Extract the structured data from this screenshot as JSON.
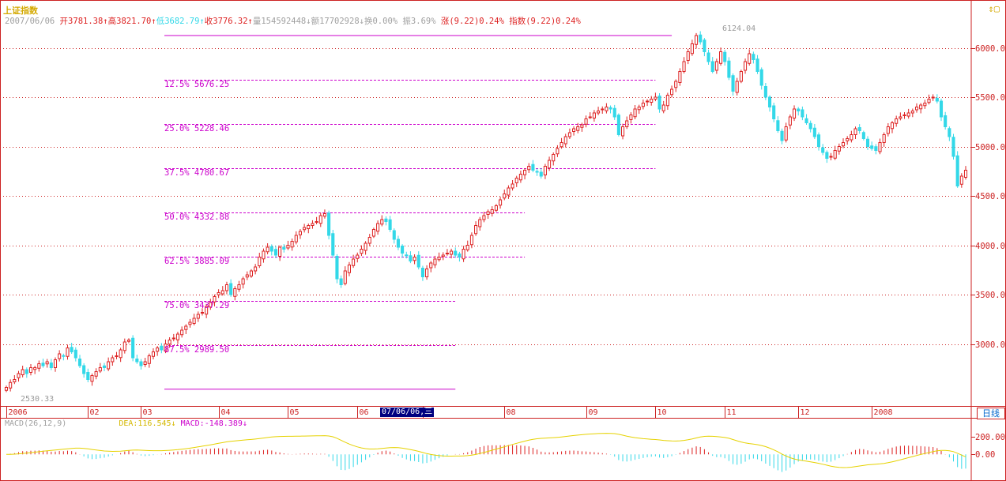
{
  "header": {
    "title": "上证指数",
    "date": "2007/06/06",
    "open": "开3781.38↑",
    "high": "高3821.70↑",
    "low": "低3682.79↑",
    "close": "收3776.32↑",
    "volume": "量154592448↓",
    "amount": "额17702928↓",
    "turnover": "换0.00%",
    "amplitude": "振3.69%",
    "change": "涨(9.22)0.24%",
    "index": "指数(9.22)0.24%"
  },
  "toolbar": {
    "icons": [
      "up-down-arrows-icon",
      "small-box-icon"
    ]
  },
  "colors": {
    "up": "#dd2222",
    "down": "#33d8e8",
    "grid": "#cc2222",
    "fib": "#cc00cc",
    "dea": "#e6d200",
    "background": "#ffffff"
  },
  "period_label": "日线",
  "cursor_date": "07/06/06,三",
  "macd_legend": {
    "name": "MACD(26,12,9)",
    "dea": "DEA:116.545↓",
    "macd": "MACD:-148.389↓"
  },
  "peak_label": "6124.04",
  "trough_label": "2530.33",
  "chart_data": {
    "type": "candlestick",
    "title": "上证指数",
    "y_ticks": [
      3000,
      3500,
      4000,
      4500,
      5000,
      5500,
      6000
    ],
    "y_tick_labels": [
      "3000.00",
      "3500.00",
      "4000.00",
      "4500.00",
      "5000.00",
      "5500.00",
      "6000.00"
    ],
    "ylim": [
      2460,
      6180
    ],
    "x_ticks": [
      {
        "label": "2006",
        "pos": 0
      },
      {
        "label": "02",
        "pos": 20
      },
      {
        "label": "03",
        "pos": 33
      },
      {
        "label": "04",
        "pos": 52
      },
      {
        "label": "05",
        "pos": 69
      },
      {
        "label": "06",
        "pos": 86
      },
      {
        "label": "07",
        "pos": 102
      },
      {
        "label": "08",
        "pos": 122
      },
      {
        "label": "09",
        "pos": 142
      },
      {
        "label": "10",
        "pos": 159
      },
      {
        "label": "11",
        "pos": 176
      },
      {
        "label": "12",
        "pos": 194
      },
      {
        "label": "2008",
        "pos": 212
      }
    ],
    "closes": [
      2560,
      2610,
      2640,
      2700,
      2740,
      2700,
      2760,
      2760,
      2800,
      2780,
      2820,
      2760,
      2840,
      2900,
      2880,
      2960,
      2920,
      2860,
      2780,
      2700,
      2640,
      2680,
      2720,
      2760,
      2760,
      2820,
      2860,
      2880,
      2940,
      3020,
      3040,
      2860,
      2820,
      2780,
      2820,
      2880,
      2920,
      2960,
      2940,
      3000,
      3040,
      3060,
      3100,
      3140,
      3180,
      3220,
      3260,
      3300,
      3320,
      3380,
      3420,
      3480,
      3520,
      3540,
      3600,
      3500,
      3560,
      3600,
      3660,
      3700,
      3740,
      3780,
      3880,
      3940,
      3980,
      3940,
      3900,
      3980,
      3960,
      4000,
      4040,
      4100,
      4140,
      4180,
      4200,
      4220,
      4240,
      4300,
      4320,
      4100,
      3900,
      3660,
      3600,
      3740,
      3800,
      3860,
      3900,
      3960,
      4020,
      4080,
      4160,
      4220,
      4260,
      4240,
      4160,
      4060,
      3980,
      3920,
      3900,
      3840,
      3880,
      3780,
      3680,
      3760,
      3820,
      3860,
      3880,
      3900,
      3920,
      3940,
      3900,
      3880,
      3960,
      4000,
      4100,
      4200,
      4260,
      4300,
      4340,
      4360,
      4400,
      4460,
      4520,
      4580,
      4620,
      4680,
      4720,
      4760,
      4800,
      4760,
      4740,
      4700,
      4800,
      4860,
      4920,
      4980,
      5040,
      5100,
      5140,
      5180,
      5200,
      5220,
      5280,
      5300,
      5340,
      5360,
      5380,
      5400,
      5380,
      5300,
      5120,
      5200,
      5260,
      5320,
      5380,
      5400,
      5440,
      5460,
      5480,
      5500,
      5380,
      5420,
      5520,
      5580,
      5660,
      5760,
      5860,
      5960,
      6040,
      6124,
      6060,
      5960,
      5860,
      5760,
      5860,
      5960,
      5860,
      5700,
      5560,
      5660,
      5760,
      5860,
      5940,
      5880,
      5760,
      5620,
      5500,
      5400,
      5280,
      5160,
      5060,
      5200,
      5300,
      5380,
      5360,
      5300,
      5240,
      5180,
      5100,
      5000,
      4940,
      4880,
      4900,
      4960,
      5000,
      5040,
      5080,
      5120,
      5180,
      5160,
      5080,
      5000,
      4980,
      4960,
      5040,
      5120,
      5200,
      5240,
      5280,
      5300,
      5320,
      5340,
      5360,
      5400,
      5420,
      5440,
      5480,
      5500,
      5460,
      5300,
      5200,
      5100,
      4900,
      4600,
      4700,
      4760
    ]
  },
  "fib_levels": [
    {
      "label": "12.5% 5676.25",
      "value": 5676.25,
      "x_end": 159
    },
    {
      "label": "25.0% 5228.46",
      "value": 5228.46,
      "x_end": 159
    },
    {
      "label": "37.5% 4780.67",
      "value": 4780.67,
      "x_end": 159
    },
    {
      "label": "50.0% 4332.88",
      "value": 4332.88,
      "x_end": 127
    },
    {
      "label": "62.5% 3885.09",
      "value": 3885.09,
      "x_end": 127
    },
    {
      "label": "75.0% 3437.29",
      "value": 3437.29,
      "x_end": 110
    },
    {
      "label": "87.5% 2989.50",
      "value": 2989.5,
      "x_end": 110
    }
  ],
  "fib_bounds": {
    "top": 6124.04,
    "bottom": 2541.71
  },
  "macd_axis": {
    "ticks": [
      200,
      0
    ],
    "labels": [
      "200.00",
      "0.00"
    ],
    "ylim": [
      -250,
      300
    ]
  }
}
